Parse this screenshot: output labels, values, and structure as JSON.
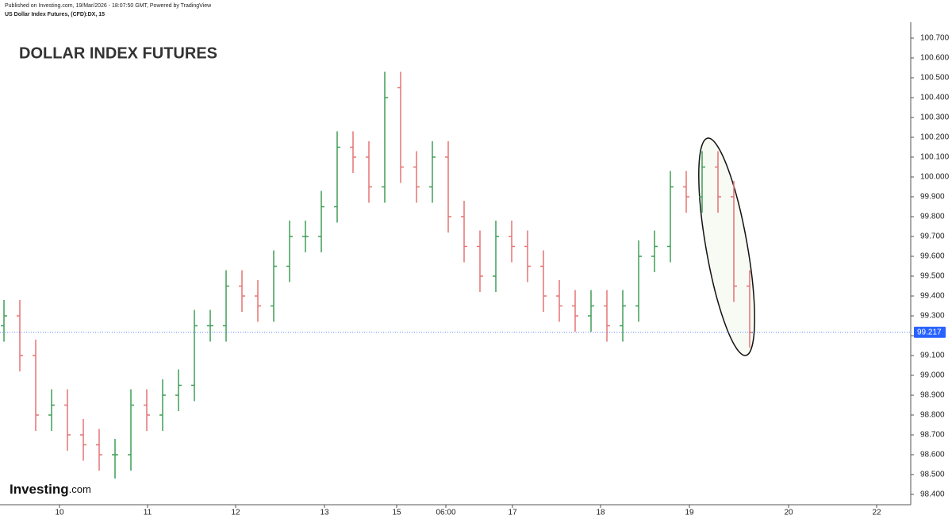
{
  "chart_data": {
    "type": "ohlc",
    "published": "Published on Investing.com, 19/Mar/2026 - 18:07:50 GMT, Powered by TradingView",
    "symbol": "US Dollar Index Futures, (CFD):DX, 15",
    "title": "DOLLAR INDEX FUTURES",
    "logo_text": "Investing",
    "logo_suffix": ".com",
    "up_color": "#3f9e57",
    "down_color": "#e57373",
    "x": [
      0,
      1,
      2,
      3,
      4,
      5,
      6,
      7,
      8,
      9,
      10,
      11,
      12,
      13,
      14,
      15,
      16,
      17,
      18,
      19,
      20,
      21,
      22,
      23,
      24,
      25,
      26,
      27,
      28,
      29,
      30,
      31,
      32,
      33,
      34,
      35,
      36,
      37,
      38,
      39,
      40,
      41,
      42,
      43,
      44,
      45,
      46,
      47
    ],
    "open": [
      99.25,
      99.3,
      99.1,
      98.8,
      98.85,
      98.7,
      98.65,
      98.6,
      98.6,
      98.85,
      98.8,
      98.9,
      98.95,
      99.25,
      99.25,
      99.45,
      99.4,
      99.35,
      99.55,
      99.7,
      99.7,
      99.85,
      100.15,
      100.1,
      99.95,
      100.45,
      100.05,
      99.95,
      100.1,
      99.8,
      99.65,
      99.5,
      99.7,
      99.65,
      99.55,
      99.4,
      99.35,
      99.3,
      99.35,
      99.25,
      99.35,
      99.6,
      99.65,
      99.95,
      99.9,
      100.05,
      99.9,
      99.45
    ],
    "high": [
      99.38,
      99.38,
      99.18,
      98.93,
      98.93,
      98.78,
      98.73,
      98.68,
      98.93,
      98.93,
      98.98,
      99.03,
      99.33,
      99.33,
      99.53,
      99.53,
      99.48,
      99.63,
      99.78,
      99.78,
      99.93,
      100.23,
      100.23,
      100.18,
      100.53,
      100.53,
      100.13,
      100.18,
      100.18,
      99.88,
      99.73,
      99.78,
      99.78,
      99.73,
      99.63,
      99.48,
      99.43,
      99.43,
      99.43,
      99.43,
      99.68,
      99.73,
      100.03,
      100.03,
      100.13,
      100.13,
      99.98,
      99.53
    ],
    "low": [
      99.17,
      99.02,
      98.72,
      98.72,
      98.62,
      98.57,
      98.52,
      98.48,
      98.52,
      98.72,
      98.72,
      98.82,
      98.87,
      99.17,
      99.17,
      99.32,
      99.27,
      99.27,
      99.47,
      99.62,
      99.62,
      99.77,
      100.02,
      99.87,
      99.87,
      99.97,
      99.87,
      99.87,
      99.72,
      99.57,
      99.42,
      99.42,
      99.57,
      99.47,
      99.32,
      99.27,
      99.22,
      99.22,
      99.17,
      99.17,
      99.27,
      99.52,
      99.57,
      99.82,
      99.82,
      99.82,
      99.37,
      99.14
    ],
    "close": [
      99.3,
      99.1,
      98.8,
      98.85,
      98.7,
      98.65,
      98.6,
      98.6,
      98.85,
      98.8,
      98.9,
      98.95,
      99.25,
      99.25,
      99.45,
      99.4,
      99.35,
      99.55,
      99.7,
      99.7,
      99.85,
      100.15,
      100.1,
      99.95,
      100.4,
      100.05,
      99.95,
      100.1,
      99.8,
      99.65,
      99.5,
      99.7,
      99.65,
      99.55,
      99.4,
      99.35,
      99.3,
      99.35,
      99.25,
      99.35,
      99.6,
      99.65,
      99.95,
      99.9,
      100.05,
      99.9,
      99.45,
      99.217
    ],
    "last_price": 99.217,
    "last_price_color": "#2962ff",
    "xlim": [
      -0.25,
      57.15
    ],
    "xticks": [
      {
        "value": 3.5,
        "label": "10"
      },
      {
        "value": 9.05,
        "label": "11"
      },
      {
        "value": 14.6,
        "label": "12"
      },
      {
        "value": 20.2,
        "label": "13"
      },
      {
        "value": 24.75,
        "label": "15"
      },
      {
        "value": 27.85,
        "label": "06:00"
      },
      {
        "value": 32.05,
        "label": "17"
      },
      {
        "value": 37.6,
        "label": "18"
      },
      {
        "value": 43.2,
        "label": "19"
      },
      {
        "value": 49.45,
        "label": "20"
      },
      {
        "value": 55,
        "label": "22"
      }
    ],
    "ylim": [
      98.348,
      100.78
    ],
    "yticks": [
      {
        "value": 98.4,
        "label": "98.400"
      },
      {
        "value": 98.5,
        "label": "98.500"
      },
      {
        "value": 98.6,
        "label": "98.600"
      },
      {
        "value": 98.7,
        "label": "98.700"
      },
      {
        "value": 98.8,
        "label": "98.800"
      },
      {
        "value": 98.9,
        "label": "98.900"
      },
      {
        "value": 99,
        "label": "99.000"
      },
      {
        "value": 99.1,
        "label": "99.100"
      },
      {
        "value": 99.2,
        "label": "99.200"
      },
      {
        "value": 99.3,
        "label": "99.300"
      },
      {
        "value": 99.4,
        "label": "99.400"
      },
      {
        "value": 99.5,
        "label": "99.500"
      },
      {
        "value": 99.6,
        "label": "99.600"
      },
      {
        "value": 99.7,
        "label": "99.700"
      },
      {
        "value": 99.8,
        "label": "99.800"
      },
      {
        "value": 99.9,
        "label": "99.900"
      },
      {
        "value": 100,
        "label": "100.000"
      },
      {
        "value": 100.1,
        "label": "100.100"
      },
      {
        "value": 100.2,
        "label": "100.200"
      },
      {
        "value": 100.3,
        "label": "100.300"
      },
      {
        "value": 100.4,
        "label": "100.400"
      },
      {
        "value": 100.5,
        "label": "100.500"
      },
      {
        "value": 100.6,
        "label": "100.600"
      },
      {
        "value": 100.7,
        "label": "100.700"
      }
    ]
  }
}
